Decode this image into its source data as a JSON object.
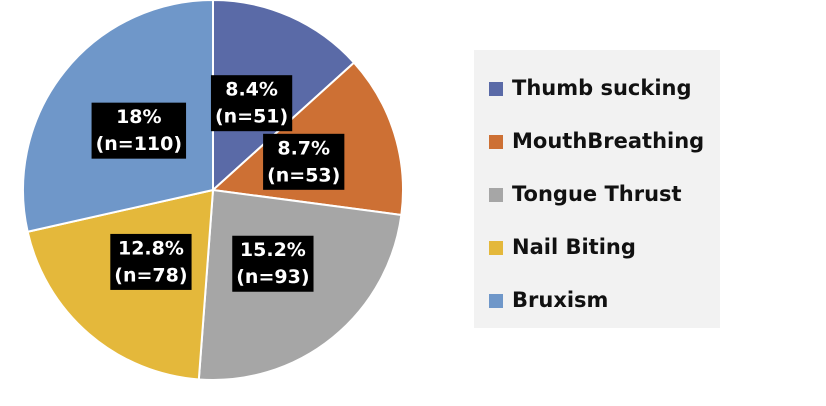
{
  "chart_data": {
    "type": "pie",
    "categories": [
      "Thumb sucking",
      "MouthBreathing",
      "Tongue Thrust",
      "Nail Biting",
      "Bruxism"
    ],
    "values": [
      8.4,
      8.7,
      15.2,
      12.8,
      18
    ],
    "value_labels": [
      "8.4%",
      "8.7%",
      "15.2%",
      "12.8%",
      "18%"
    ],
    "counts": [
      51,
      53,
      93,
      78,
      110
    ],
    "count_labels": [
      "(n=51)",
      "(n=53)",
      "(n=93)",
      "(n=78)",
      "(n=110)"
    ],
    "colors": [
      "#5a6aa7",
      "#cd7034",
      "#a6a6a6",
      "#e4b83b",
      "#6f97c9"
    ],
    "legend": "right"
  }
}
